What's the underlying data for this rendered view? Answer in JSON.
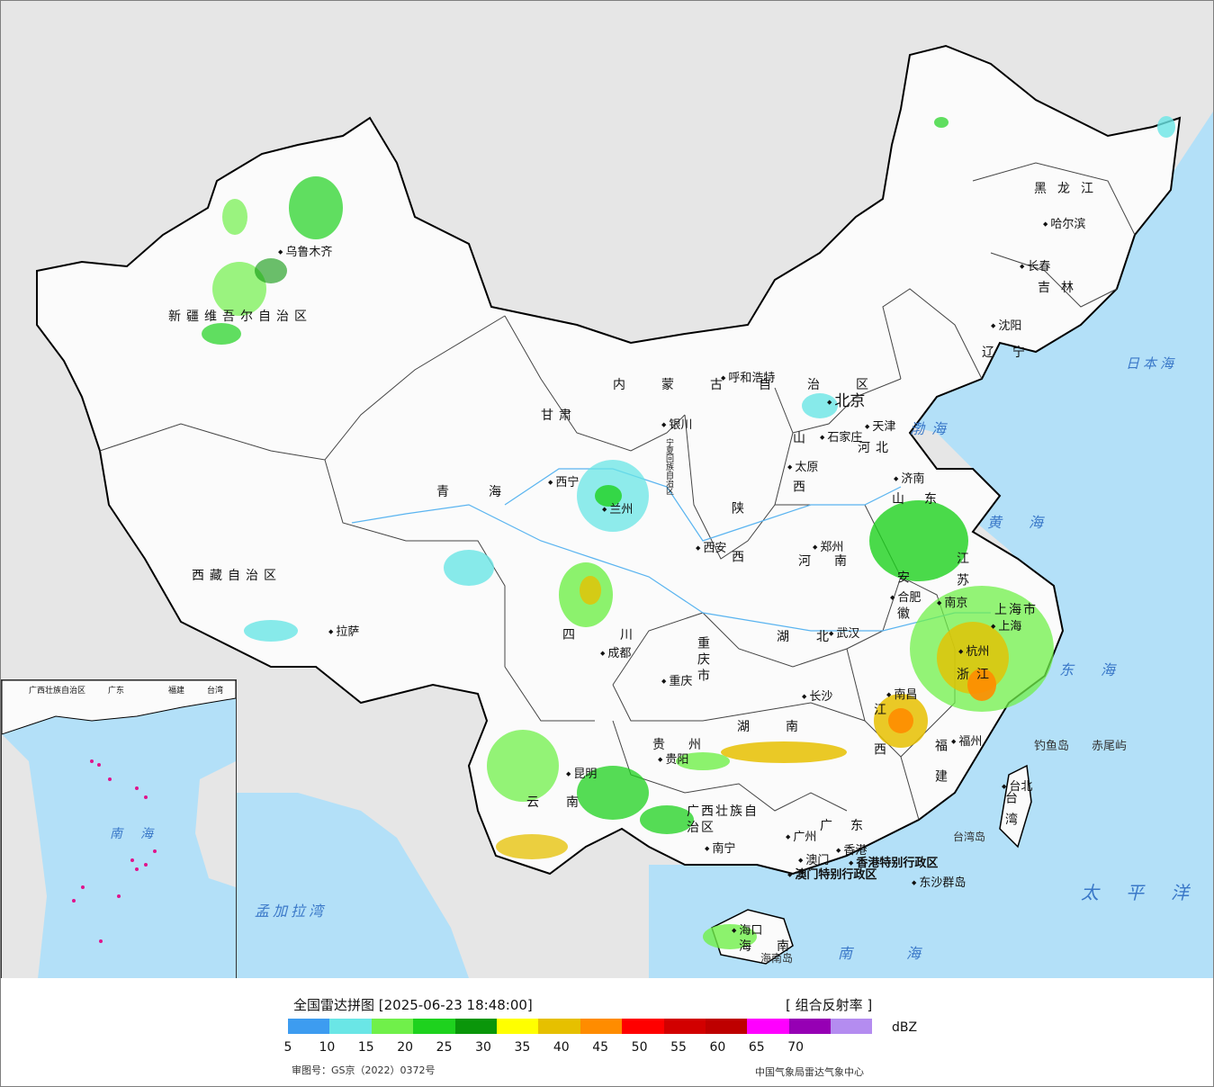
{
  "legend": {
    "title": "全国雷达拼图 [2025-06-23 18:48:00]",
    "product": "[ 组合反射率 ]",
    "unit": "dBZ",
    "colors": [
      "#3d9cf0",
      "#6ae6e6",
      "#70f04a",
      "#1ed21e",
      "#0a960a",
      "#ffff00",
      "#e6c000",
      "#ff8c00",
      "#ff0000",
      "#d20000",
      "#be0000",
      "#ff00ff",
      "#9600b4",
      "#b48cf0"
    ],
    "ticks": [
      "5",
      "10",
      "15",
      "20",
      "25",
      "30",
      "35",
      "40",
      "45",
      "50",
      "55",
      "60",
      "65",
      "70"
    ],
    "review_no": "审图号：GS京（2022）0372号",
    "agency": "中国气象局雷达气象中心"
  },
  "provinces": [
    {
      "name": "新疆维吾尔自治区"
    },
    {
      "name": "西藏自治区"
    },
    {
      "name": "青海"
    },
    {
      "name": "甘肃"
    },
    {
      "name": "内蒙古自治区"
    },
    {
      "name": "黑龙江"
    },
    {
      "name": "吉林"
    },
    {
      "name": "辽宁"
    },
    {
      "name": "河北"
    },
    {
      "name": "山西"
    },
    {
      "name": "陕西"
    },
    {
      "name": "河南"
    },
    {
      "name": "山东"
    },
    {
      "name": "江苏"
    },
    {
      "name": "安徽"
    },
    {
      "name": "湖北"
    },
    {
      "name": "四川"
    },
    {
      "name": "重庆市"
    },
    {
      "name": "贵州"
    },
    {
      "name": "云南"
    },
    {
      "name": "湖南"
    },
    {
      "name": "江西"
    },
    {
      "name": "浙江"
    },
    {
      "name": "福建"
    },
    {
      "name": "广东"
    },
    {
      "name": "广西壮族自治区"
    },
    {
      "name": "海南"
    },
    {
      "name": "台湾"
    },
    {
      "name": "上海市"
    },
    {
      "name": "宁夏回族自治区"
    }
  ],
  "cities": [
    {
      "name": "乌鲁木齐"
    },
    {
      "name": "拉萨"
    },
    {
      "name": "西宁"
    },
    {
      "name": "兰州"
    },
    {
      "name": "银川"
    },
    {
      "name": "呼和浩特"
    },
    {
      "name": "北京"
    },
    {
      "name": "天津"
    },
    {
      "name": "石家庄"
    },
    {
      "name": "太原"
    },
    {
      "name": "济南"
    },
    {
      "name": "郑州"
    },
    {
      "name": "西安"
    },
    {
      "name": "哈尔滨"
    },
    {
      "name": "长春"
    },
    {
      "name": "沈阳"
    },
    {
      "name": "合肥"
    },
    {
      "name": "南京"
    },
    {
      "name": "上海"
    },
    {
      "name": "杭州"
    },
    {
      "name": "武汉"
    },
    {
      "name": "成都"
    },
    {
      "name": "重庆"
    },
    {
      "name": "长沙"
    },
    {
      "name": "南昌"
    },
    {
      "name": "福州"
    },
    {
      "name": "贵阳"
    },
    {
      "name": "昆明"
    },
    {
      "name": "南宁"
    },
    {
      "name": "广州"
    },
    {
      "name": "香港"
    },
    {
      "name": "澳门"
    },
    {
      "name": "海口"
    },
    {
      "name": "台北"
    }
  ],
  "seas": [
    {
      "name": "日本海"
    },
    {
      "name": "渤海"
    },
    {
      "name": "黄海"
    },
    {
      "name": "东海"
    },
    {
      "name": "太平洋"
    },
    {
      "name": "南海"
    },
    {
      "name": "孟加拉湾"
    }
  ],
  "misc_labels": [
    {
      "name": "香港特别行政区"
    },
    {
      "name": "澳门特别行政区"
    },
    {
      "name": "东沙群岛"
    },
    {
      "name": "钓鱼岛"
    },
    {
      "name": "赤尾屿"
    },
    {
      "name": "台湾岛"
    },
    {
      "name": "海南岛"
    }
  ],
  "inset_labels": [
    {
      "name": "南海"
    },
    {
      "name": "广西壮族自治区"
    },
    {
      "name": "广东"
    },
    {
      "name": "福建"
    },
    {
      "name": "台湾"
    }
  ]
}
